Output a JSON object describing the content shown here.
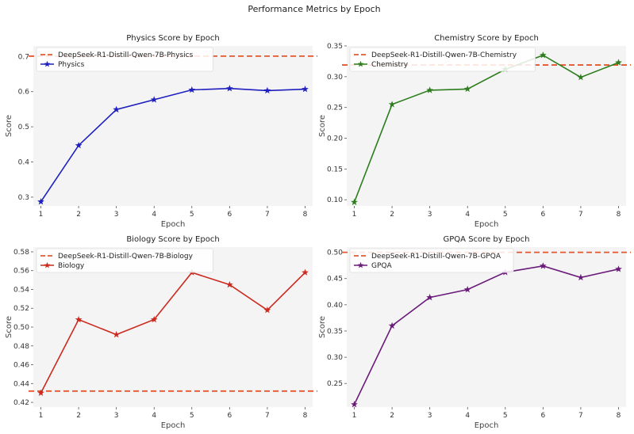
{
  "title": "Performance Metrics by Epoch",
  "chart_data": [
    {
      "type": "line",
      "title": "Physics Score by Epoch",
      "xlabel": "Epoch",
      "ylabel": "Score",
      "x": [
        1,
        2,
        3,
        4,
        5,
        6,
        7,
        8
      ],
      "xlim": [
        0.8,
        8.2
      ],
      "ylim": [
        0.275,
        0.73
      ],
      "yticks": [
        0.3,
        0.4,
        0.5,
        0.6,
        0.7
      ],
      "ytick_labels": [
        "0.3",
        "0.4",
        "0.5",
        "0.6",
        "0.7"
      ],
      "series": [
        {
          "name": "Physics",
          "values": [
            0.287,
            0.447,
            0.549,
            0.577,
            0.605,
            0.609,
            0.603,
            0.607
          ],
          "color": "#1f1fbf",
          "marker": "star"
        }
      ],
      "baseline": {
        "name": "DeepSeek-R1-Distill-Qwen-7B-Physics",
        "value": 0.701,
        "color": "#e4572e"
      },
      "legend": "top-left",
      "grid": false
    },
    {
      "type": "line",
      "title": "Chemistry Score by Epoch",
      "xlabel": "Epoch",
      "ylabel": "Score",
      "x": [
        1,
        2,
        3,
        4,
        5,
        6,
        7,
        8
      ],
      "xlim": [
        0.8,
        8.2
      ],
      "ylim": [
        0.09,
        0.35
      ],
      "yticks": [
        0.1,
        0.15,
        0.2,
        0.25,
        0.3,
        0.35
      ],
      "ytick_labels": [
        "0.10",
        "0.15",
        "0.20",
        "0.25",
        "0.30",
        "0.35"
      ],
      "series": [
        {
          "name": "Chemistry",
          "values": [
            0.096,
            0.255,
            0.278,
            0.28,
            0.312,
            0.335,
            0.299,
            0.323
          ],
          "color": "#2e7d1e",
          "marker": "star"
        }
      ],
      "baseline": {
        "name": "DeepSeek-R1-Distill-Qwen-7B-Chemistry",
        "value": 0.319,
        "color": "#e4572e"
      },
      "legend": "top-left",
      "grid": false
    },
    {
      "type": "line",
      "title": "Biology Score by Epoch",
      "xlabel": "Epoch",
      "ylabel": "Score",
      "x": [
        1,
        2,
        3,
        4,
        5,
        6,
        7,
        8
      ],
      "xlim": [
        0.8,
        8.2
      ],
      "ylim": [
        0.415,
        0.585
      ],
      "yticks": [
        0.42,
        0.44,
        0.46,
        0.48,
        0.5,
        0.52,
        0.54,
        0.56,
        0.58
      ],
      "ytick_labels": [
        "0.42",
        "0.44",
        "0.46",
        "0.48",
        "0.50",
        "0.52",
        "0.54",
        "0.56",
        "0.58"
      ],
      "series": [
        {
          "name": "Biology",
          "values": [
            0.43,
            0.508,
            0.492,
            0.508,
            0.558,
            0.545,
            0.518,
            0.558
          ],
          "color": "#cc2a1f",
          "marker": "star"
        }
      ],
      "baseline": {
        "name": "DeepSeek-R1-Distill-Qwen-7B-Biology",
        "value": 0.432,
        "color": "#e4572e"
      },
      "legend": "top-left",
      "grid": false
    },
    {
      "type": "line",
      "title": "GPQA Score by Epoch",
      "xlabel": "Epoch",
      "ylabel": "Score",
      "x": [
        1,
        2,
        3,
        4,
        5,
        6,
        7,
        8
      ],
      "xlim": [
        0.8,
        8.2
      ],
      "ylim": [
        0.205,
        0.51
      ],
      "yticks": [
        0.25,
        0.3,
        0.35,
        0.4,
        0.45,
        0.5
      ],
      "ytick_labels": [
        "0.25",
        "0.30",
        "0.35",
        "0.40",
        "0.45",
        "0.50"
      ],
      "series": [
        {
          "name": "GPQA",
          "values": [
            0.21,
            0.36,
            0.414,
            0.429,
            0.462,
            0.474,
            0.452,
            0.468
          ],
          "color": "#6a1b7a",
          "marker": "star"
        }
      ],
      "baseline": {
        "name": "DeepSeek-R1-Distill-Qwen-7B-GPQA",
        "value": 0.5,
        "color": "#e4572e"
      },
      "legend": "top-left",
      "grid": false
    }
  ]
}
